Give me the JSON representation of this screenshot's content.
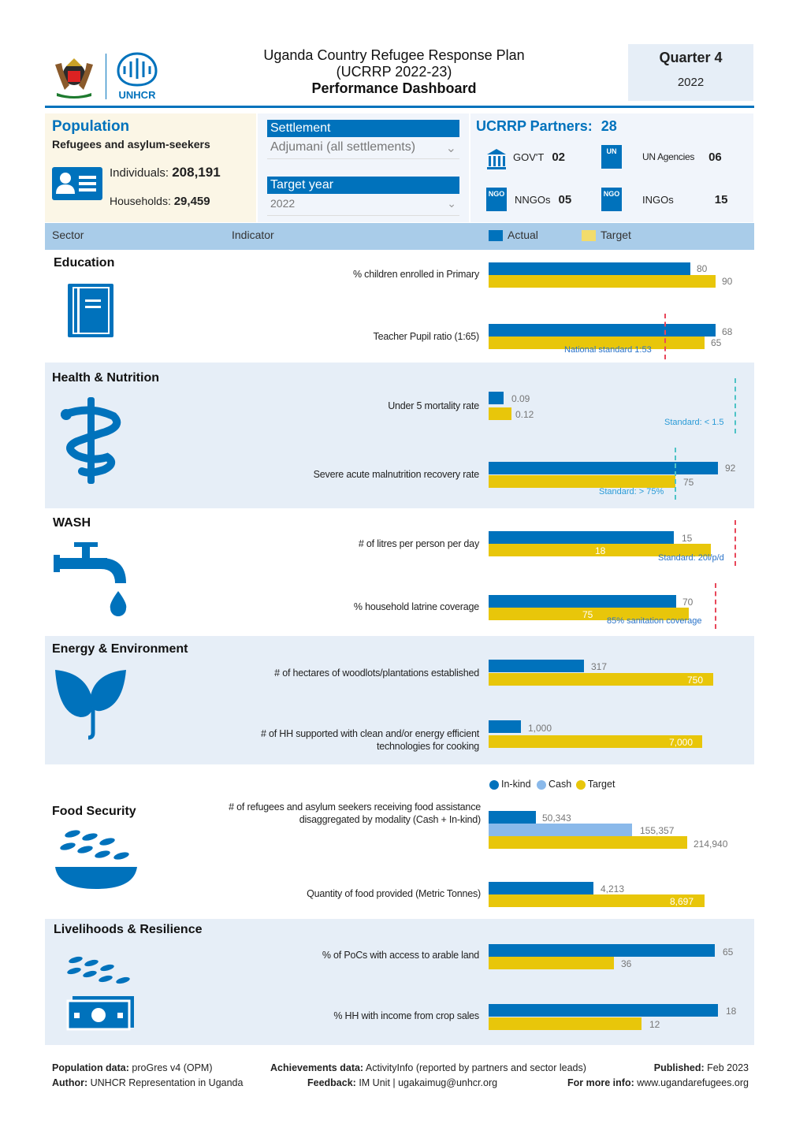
{
  "header": {
    "title_line1": "Uganda Country Refugee Response Plan",
    "title_line2": "(UCRRP 2022-23)",
    "title_line3": "Performance Dashboard",
    "quarter": "Quarter 4",
    "year": "2022",
    "logo_text": "UNHCR"
  },
  "population": {
    "title": "Population",
    "subtitle": "Refugees and asylum-seekers",
    "individuals_label": "Individuals:",
    "individuals": "208,191",
    "households_label": "Households:",
    "households": "29,459"
  },
  "filters": {
    "settlement_label": "Settlement",
    "settlement_value": "Adjumani (all settlements)",
    "year_label": "Target year",
    "year_value": "2022"
  },
  "partners": {
    "title": "UCRRP Partners:",
    "total": "28",
    "items": [
      {
        "label": "GOV'T",
        "value": "02",
        "icon": "government-building-icon"
      },
      {
        "label": "UN Agencies",
        "value": "06",
        "icon": "un-agency-icon"
      },
      {
        "label": "NNGOs",
        "value": "05",
        "icon": "nngo-icon"
      },
      {
        "label": "INGOs",
        "value": "15",
        "icon": "ingo-icon"
      }
    ]
  },
  "table_header": {
    "sector": "Sector",
    "indicator": "Indicator",
    "actual": "Actual",
    "target": "Target"
  },
  "colors": {
    "actual": "#0072bc",
    "target": "#e8c60a",
    "cash": "#8ab9ea",
    "band": "#e6eef7"
  },
  "sectors": {
    "education": {
      "title": "Education",
      "icon": "notebook-icon",
      "ind1": "% children enrolled in Primary",
      "ind1_actual": "80",
      "ind1_target": "90",
      "ind2": "Teacher Pupil ratio (1:65)",
      "ind2_actual": "68",
      "ind2_target": "65",
      "ind2_standard": "National standard 1:53"
    },
    "health": {
      "title": "Health & Nutrition",
      "icon": "staff-of-asclepius-icon",
      "ind1": "Under 5 mortality rate",
      "ind1_actual": "0.09",
      "ind1_target": "0.12",
      "ind1_standard": "Standard: < 1.5",
      "ind2": "Severe acute malnutrition recovery rate",
      "ind2_actual": "92",
      "ind2_target": "75",
      "ind2_standard": "Standard: > 75%"
    },
    "wash": {
      "title": "WASH",
      "icon": "water-tap-icon",
      "ind1": "# of litres per person per day",
      "ind1_actual": "15",
      "ind1_target": "18",
      "ind1_standard": "Standard: 20l/p/d",
      "ind2": "% household latrine coverage",
      "ind2_actual": "70",
      "ind2_target": "75",
      "ind2_standard": "85% sanitation coverage"
    },
    "energy": {
      "title": "Energy & Environment",
      "icon": "leaves-icon",
      "ind1": "# of hectares of woodlots/plantations established",
      "ind1_actual": "317",
      "ind1_target": "750",
      "ind2_line1": "# of HH supported with clean and/or energy efficient",
      "ind2_line2": "technologies for cooking",
      "ind2_actual": "1,000",
      "ind2_target": "7,000"
    },
    "food": {
      "title": "Food Security",
      "icon": "food-bowl-icon",
      "legend_inkind": "In-kind",
      "legend_cash": "Cash",
      "legend_target": "Target",
      "ind1_line1": "# of refugees and asylum seekers receiving food assistance",
      "ind1_line2": "disaggregated by modality (Cash + In-kind)",
      "ind1_inkind": "50,343",
      "ind1_cash": "155,357",
      "ind1_target": "214,940",
      "ind2": "Quantity of food provided (Metric Tonnes)",
      "ind2_actual": "4,213",
      "ind2_target": "8,697"
    },
    "livelihoods": {
      "title": "Livelihoods & Resilience",
      "icon": "grain-and-cash-icon",
      "ind1": "% of PoCs with access to arable land",
      "ind1_actual": "65",
      "ind1_target": "36",
      "ind2": "% HH with income from crop sales",
      "ind2_actual": "18",
      "ind2_target": "12"
    }
  },
  "footer": {
    "pop_label": "Population data:",
    "pop_value": "proGres v4 (OPM)",
    "author_label": "Author:",
    "author_value": "UNHCR Representation in Uganda",
    "ach_label": "Achievements data:",
    "ach_value": "ActivityInfo (reported by partners and sector leads)",
    "feedback_label": "Feedback:",
    "feedback_value": "IM Unit | ugakaimug@unhcr.org",
    "published_label": "Published:",
    "published_value": "Feb 2023",
    "more_label": "For more info:",
    "more_value": "www.ugandarefugees.org"
  }
}
